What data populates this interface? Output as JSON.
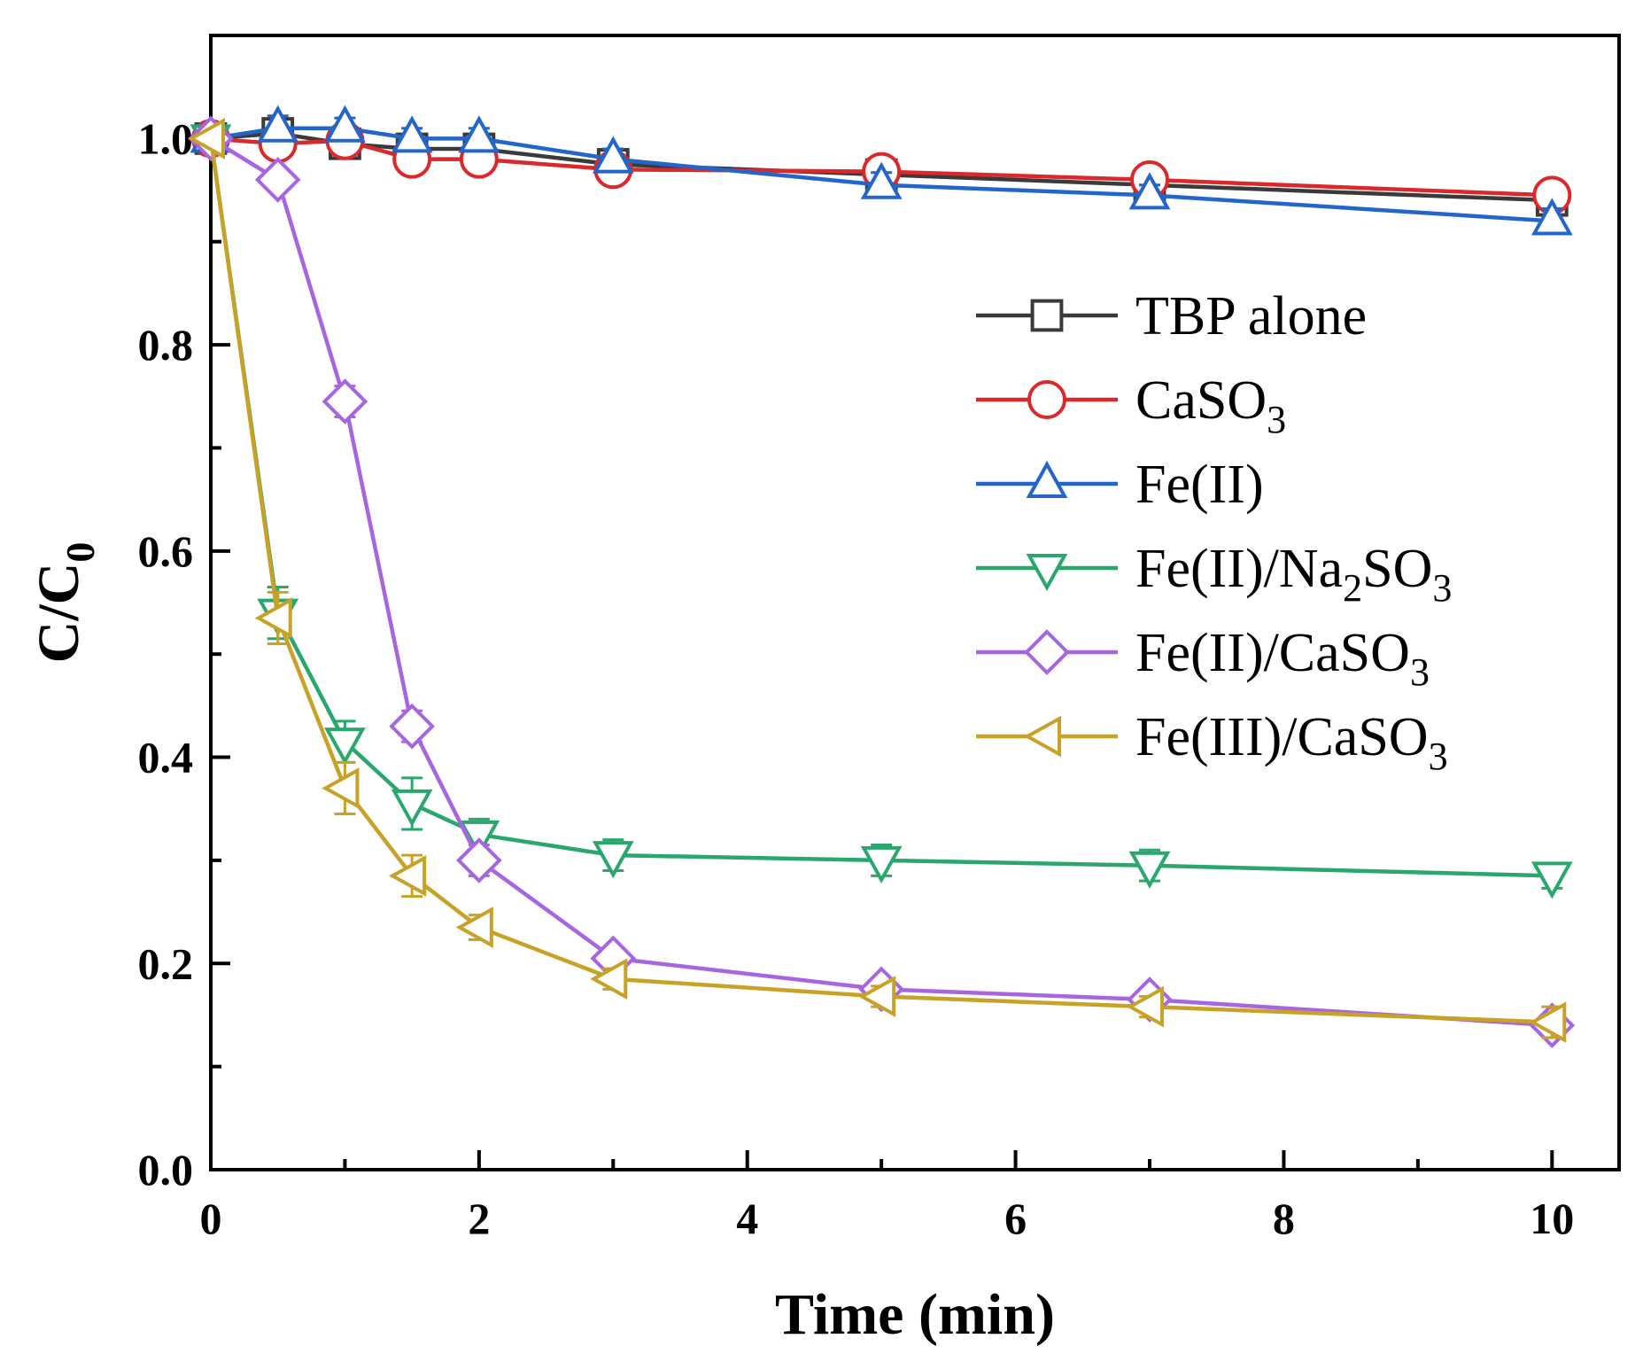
{
  "chart_data": {
    "type": "line",
    "title": "",
    "xlabel": "Time (min)",
    "ylabel": "C/C0",
    "ylabel_main": "C/C",
    "ylabel_sub": "0",
    "xlim": [
      0,
      10.5
    ],
    "ylim": [
      0,
      1.1
    ],
    "xticks": [
      0,
      2,
      4,
      6,
      8,
      10
    ],
    "xtick_labels": [
      "0",
      "2",
      "4",
      "6",
      "8",
      "10"
    ],
    "yticks": [
      0,
      0.2,
      0.4,
      0.6,
      0.8,
      1.0
    ],
    "ytick_labels": [
      "0.0",
      "0.2",
      "0.4",
      "0.6",
      "0.8",
      "1.0"
    ],
    "legend_position": "center-right",
    "grid": false,
    "x": [
      0,
      0.5,
      1,
      1.5,
      2,
      3,
      5,
      7,
      10
    ],
    "series": [
      {
        "name": "TBP alone",
        "label_main": "TBP alone",
        "label_sub": "",
        "label_tail": "",
        "color": "#3a3a3a",
        "marker": "square",
        "values": [
          1.0,
          1.005,
          0.995,
          0.99,
          0.99,
          0.975,
          0.965,
          0.955,
          0.94
        ],
        "errors": [
          0,
          0.01,
          0.008,
          0.008,
          0.01,
          0.01,
          0.012,
          0.01,
          0.012
        ]
      },
      {
        "name": "CaSO3",
        "label_main": "CaSO",
        "label_sub": "3",
        "label_tail": "",
        "color": "#d9292b",
        "marker": "circle",
        "values": [
          1.0,
          0.995,
          0.998,
          0.98,
          0.98,
          0.97,
          0.968,
          0.96,
          0.945
        ],
        "errors": [
          0,
          0.01,
          0.008,
          0.01,
          0.01,
          0.01,
          0.012,
          0.01,
          0.012
        ]
      },
      {
        "name": "Fe(II)",
        "label_main": "Fe(II)",
        "label_sub": "",
        "label_tail": "",
        "color": "#2465c9",
        "marker": "triangle-up",
        "values": [
          1.0,
          1.01,
          1.01,
          1.0,
          1.0,
          0.98,
          0.955,
          0.945,
          0.92
        ],
        "errors": [
          0,
          0.012,
          0.01,
          0.01,
          0.01,
          0.01,
          0.012,
          0.01,
          0.012
        ]
      },
      {
        "name": "Fe(II)/Na2SO3",
        "label_main": "Fe(II)/Na",
        "label_sub": "2",
        "label_tail": "SO3",
        "color": "#2aa76d",
        "marker": "triangle-down",
        "values": [
          1.0,
          0.54,
          0.415,
          0.355,
          0.325,
          0.305,
          0.3,
          0.295,
          0.285
        ],
        "errors": [
          0,
          0.025,
          0.02,
          0.025,
          0.015,
          0.015,
          0.015,
          0.015,
          0.012
        ]
      },
      {
        "name": "Fe(II)/CaSO3",
        "label_main": "Fe(II)/CaSO",
        "label_sub": "3",
        "label_tail": "",
        "color": "#a865e0",
        "marker": "diamond",
        "values": [
          1.0,
          0.96,
          0.745,
          0.43,
          0.3,
          0.205,
          0.175,
          0.165,
          0.14
        ],
        "errors": [
          0,
          0.01,
          0.015,
          0.015,
          0.015,
          0.01,
          0.01,
          0.01,
          0.01
        ]
      },
      {
        "name": "Fe(III)/CaSO3",
        "label_main": "Fe(III)/CaSO",
        "label_sub": "3",
        "label_tail": "",
        "color": "#c8a227",
        "marker": "triangle-left",
        "values": [
          1.0,
          0.535,
          0.37,
          0.285,
          0.235,
          0.185,
          0.168,
          0.158,
          0.143
        ],
        "errors": [
          0,
          0.025,
          0.025,
          0.02,
          0.012,
          0.01,
          0.01,
          0.01,
          0.015
        ]
      }
    ]
  }
}
